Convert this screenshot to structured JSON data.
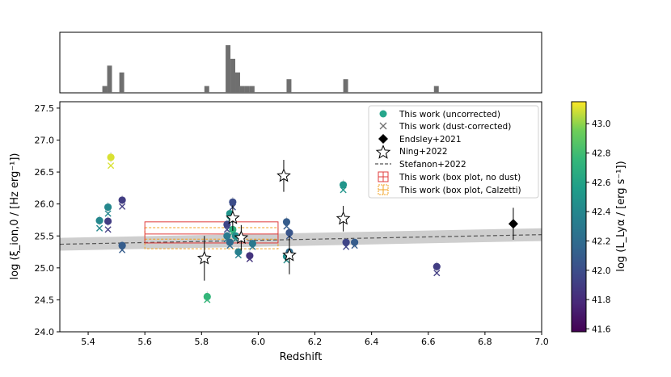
{
  "chart_data": {
    "type": "scatter",
    "xlabel": "Redshift",
    "ylabel": "log (ξ_ion,0 / [Hz erg⁻¹])",
    "xlim": [
      5.3,
      7.0
    ],
    "ylim": [
      24.0,
      27.6
    ],
    "x_ticks": [
      "5.4",
      "5.6",
      "5.8",
      "6.0",
      "6.2",
      "6.4",
      "6.6",
      "6.8",
      "7.0"
    ],
    "y_ticks": [
      "24.0",
      "24.5",
      "25.0",
      "25.5",
      "26.0",
      "26.5",
      "27.0",
      "27.5"
    ],
    "colorbar": {
      "label": "log  (L_Lyα / [erg s⁻¹])",
      "range": [
        41.58,
        43.15
      ],
      "ticks": [
        "41.6",
        "41.8",
        "42.0",
        "42.2",
        "42.4",
        "42.6",
        "42.8",
        "43.0"
      ]
    },
    "legend": {
      "position": "top-right",
      "entries": [
        "This work (uncorrected)",
        "This work (dust-corrected)",
        "Endsley+2021",
        "Ning+2022",
        "Stefanon+2022",
        "This work (box plot, no dust)",
        "This work (box plot, Calzetti)"
      ]
    },
    "histogram": {
      "bins": [
        {
          "x0": 5.45,
          "x1": 5.467,
          "count": 1
        },
        {
          "x0": 5.467,
          "x1": 5.484,
          "count": 4
        },
        {
          "x0": 5.51,
          "x1": 5.527,
          "count": 3
        },
        {
          "x0": 5.81,
          "x1": 5.827,
          "count": 1
        },
        {
          "x0": 5.885,
          "x1": 5.902,
          "count": 7
        },
        {
          "x0": 5.902,
          "x1": 5.919,
          "count": 5
        },
        {
          "x0": 5.919,
          "x1": 5.936,
          "count": 3
        },
        {
          "x0": 5.936,
          "x1": 5.953,
          "count": 1
        },
        {
          "x0": 5.953,
          "x1": 5.97,
          "count": 1
        },
        {
          "x0": 5.97,
          "x1": 5.987,
          "count": 1
        },
        {
          "x0": 6.1,
          "x1": 6.117,
          "count": 2
        },
        {
          "x0": 6.3,
          "x1": 6.317,
          "count": 2
        },
        {
          "x0": 6.62,
          "x1": 6.637,
          "count": 1
        }
      ]
    },
    "this_work": [
      {
        "z": 5.44,
        "uncorr": 25.74,
        "corr": 25.62,
        "lya": 42.4
      },
      {
        "z": 5.47,
        "uncorr": 25.95,
        "corr": 25.85,
        "lya": 42.4
      },
      {
        "z": 5.47,
        "uncorr": 25.73,
        "corr": 25.6,
        "lya": 41.9
      },
      {
        "z": 5.48,
        "uncorr": 26.73,
        "corr": 26.6,
        "lya": 43.1
      },
      {
        "z": 5.52,
        "uncorr": 26.06,
        "corr": 25.96,
        "lya": 41.9
      },
      {
        "z": 5.52,
        "uncorr": 25.35,
        "corr": 25.28,
        "lya": 42.1
      },
      {
        "z": 5.82,
        "uncorr": 24.55,
        "corr": 24.5,
        "lya": 42.75
      },
      {
        "z": 5.89,
        "uncorr": 25.68,
        "corr": 25.6,
        "lya": 41.95
      },
      {
        "z": 5.89,
        "uncorr": 25.5,
        "corr": 25.45,
        "lya": 42.3
      },
      {
        "z": 5.9,
        "uncorr": 25.85,
        "corr": 25.75,
        "lya": 42.5
      },
      {
        "z": 5.9,
        "uncorr": 25.4,
        "corr": 25.35,
        "lya": 42.2
      },
      {
        "z": 5.91,
        "uncorr": 26.03,
        "corr": 25.95,
        "lya": 42.0
      },
      {
        "z": 5.91,
        "uncorr": 25.6,
        "corr": 25.55,
        "lya": 42.7
      },
      {
        "z": 5.92,
        "uncorr": 25.5,
        "corr": 25.45,
        "lya": 42.45
      },
      {
        "z": 5.93,
        "uncorr": 25.25,
        "corr": 25.2,
        "lya": 42.35
      },
      {
        "z": 5.97,
        "uncorr": 25.19,
        "corr": 25.14,
        "lya": 41.85
      },
      {
        "z": 5.98,
        "uncorr": 25.38,
        "corr": 25.33,
        "lya": 42.3
      },
      {
        "z": 6.1,
        "uncorr": 25.72,
        "corr": 25.65,
        "lya": 42.1
      },
      {
        "z": 6.1,
        "uncorr": 25.18,
        "corr": 25.12,
        "lya": 42.45
      },
      {
        "z": 6.11,
        "uncorr": 25.55,
        "corr": 25.5,
        "lya": 42.05
      },
      {
        "z": 6.11,
        "uncorr": 25.25,
        "corr": 25.2,
        "lya": 42.2
      },
      {
        "z": 6.3,
        "uncorr": 26.3,
        "corr": 26.22,
        "lya": 42.5
      },
      {
        "z": 6.31,
        "uncorr": 25.4,
        "corr": 25.33,
        "lya": 41.95
      },
      {
        "z": 6.34,
        "uncorr": 25.4,
        "corr": 25.35,
        "lya": 42.1
      },
      {
        "z": 6.63,
        "uncorr": 25.02,
        "corr": 24.92,
        "lya": 41.9
      }
    ],
    "endsley2021": [
      {
        "z": 6.9,
        "y": 25.69,
        "err": 0.25
      }
    ],
    "ning2022": [
      {
        "z": 5.81,
        "y": 25.15,
        "err": 0.35
      },
      {
        "z": 5.91,
        "y": 25.78,
        "err": 0.2
      },
      {
        "z": 5.94,
        "y": 25.47,
        "err": 0.2
      },
      {
        "z": 6.09,
        "y": 26.44,
        "err": 0.25
      },
      {
        "z": 6.11,
        "y": 25.2,
        "err": 0.3
      },
      {
        "z": 6.3,
        "y": 25.77,
        "err": 0.2
      }
    ],
    "stefanon2022": {
      "z0": 5.3,
      "y0": 25.37,
      "z1": 7.0,
      "y1": 25.52,
      "band": 0.1
    },
    "box_no_dust": {
      "x0": 5.6,
      "x1": 6.07,
      "q1": 25.39,
      "median": 25.53,
      "q3": 25.72
    },
    "box_calzetti": {
      "x0": 5.6,
      "x1": 6.07,
      "q1": 25.3,
      "median": 25.45,
      "q3": 25.63
    }
  }
}
